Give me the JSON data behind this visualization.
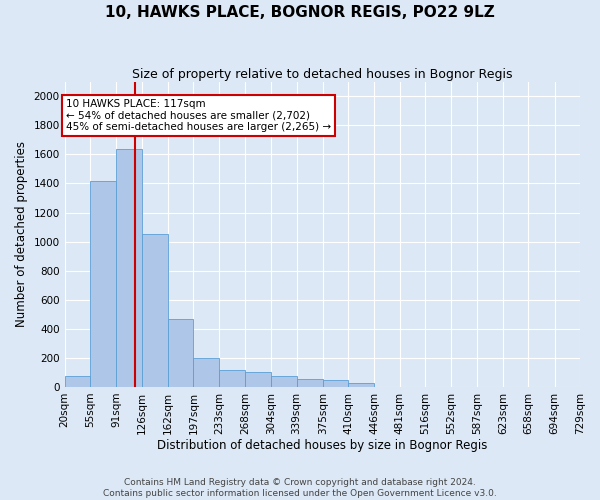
{
  "title": "10, HAWKS PLACE, BOGNOR REGIS, PO22 9LZ",
  "subtitle": "Size of property relative to detached houses in Bognor Regis",
  "xlabel": "Distribution of detached houses by size in Bognor Regis",
  "ylabel": "Number of detached properties",
  "footer_line1": "Contains HM Land Registry data © Crown copyright and database right 2024.",
  "footer_line2": "Contains public sector information licensed under the Open Government Licence v3.0.",
  "bin_edges": [
    20,
    55,
    91,
    126,
    162,
    197,
    233,
    268,
    304,
    339,
    375,
    410,
    446,
    481,
    516,
    552,
    587,
    623,
    658,
    694,
    729
  ],
  "bar_heights": [
    75,
    1420,
    1640,
    1050,
    470,
    200,
    115,
    100,
    75,
    55,
    45,
    30,
    0,
    0,
    0,
    0,
    0,
    0,
    0,
    0
  ],
  "bar_color": "#aec6e8",
  "bar_edge_color": "#5a9fd4",
  "property_size": 117,
  "property_line_color": "#cc0000",
  "annotation_line1": "10 HAWKS PLACE: 117sqm",
  "annotation_line2": "← 54% of detached houses are smaller (2,702)",
  "annotation_line3": "45% of semi-detached houses are larger (2,265) →",
  "annotation_box_color": "#ffffff",
  "annotation_box_edge_color": "#cc0000",
  "ylim": [
    0,
    2100
  ],
  "yticks": [
    0,
    200,
    400,
    600,
    800,
    1000,
    1200,
    1400,
    1600,
    1800,
    2000
  ],
  "background_color": "#dce8f5",
  "grid_color": "#ffffff",
  "title_fontsize": 11,
  "subtitle_fontsize": 9,
  "xlabel_fontsize": 8.5,
  "ylabel_fontsize": 8.5,
  "tick_fontsize": 7.5,
  "footer_fontsize": 6.5
}
